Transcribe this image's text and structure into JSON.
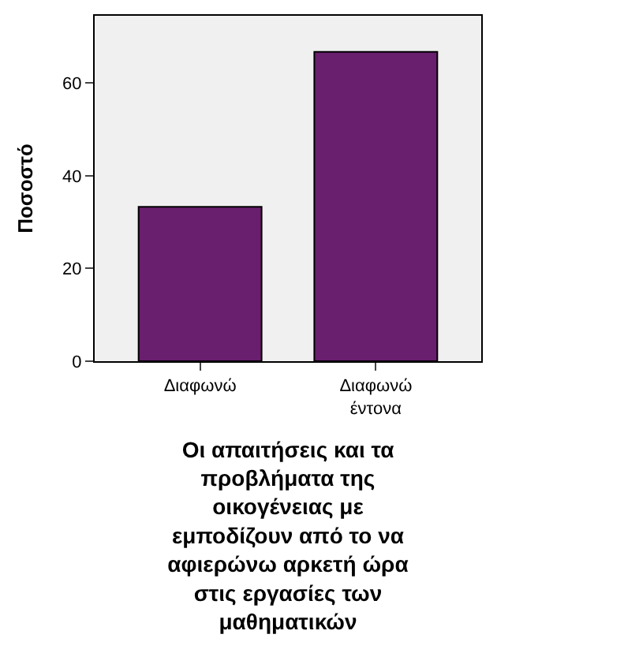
{
  "chart_data": {
    "type": "bar",
    "categories": [
      "Διαφωνώ",
      "Διαφωνώ έντονα"
    ],
    "values": [
      33.3,
      66.7
    ],
    "color": "#6a1e6e",
    "ylim": [
      0,
      74.5
    ],
    "yticks": [
      0,
      20,
      40,
      60
    ],
    "grid": false,
    "legend": false,
    "ylabel": "Ποσοστό",
    "xlabel": "Οι απαιτήσεις και τα προβλήματα της οικογένειας με εμποδίζουν από το να αφιερώνω αρκετή ώρα στις εργασίες των μαθηματικών"
  }
}
